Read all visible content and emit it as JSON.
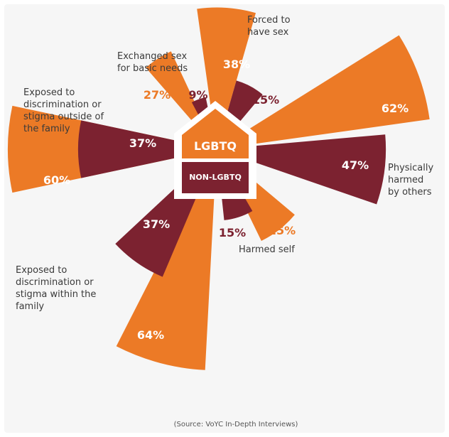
{
  "chart_data": {
    "type": "polar-area",
    "center": {
      "top_label": "LGBTQ",
      "bottom_label": "NON-LGBTQ"
    },
    "series": [
      {
        "name": "LGBTQ",
        "color": "#ec7a26"
      },
      {
        "name": "NON-LGBTQ",
        "color": "#7c2230"
      }
    ],
    "categories": [
      {
        "label_lines": [
          "Forced to",
          "have sex"
        ],
        "lgbtq": 38,
        "non_lgbtq": 15,
        "lgbtq_text": "38%",
        "non_lgbtq_text": "15%"
      },
      {
        "label_lines": [
          "Physically",
          "harmed",
          "by others"
        ],
        "lgbtq": 62,
        "non_lgbtq": 47,
        "lgbtq_text": "62%",
        "non_lgbtq_text": "47%"
      },
      {
        "label_lines": [
          "Harmed self"
        ],
        "lgbtq": 25,
        "non_lgbtq": 15,
        "lgbtq_text": "25%",
        "non_lgbtq_text": "15%"
      },
      {
        "label_lines": [
          "Exposed to",
          "discrimination or",
          "stigma within the",
          "family"
        ],
        "lgbtq": 64,
        "non_lgbtq": 37,
        "lgbtq_text": "64%",
        "non_lgbtq_text": "37%"
      },
      {
        "label_lines": [
          "Exposed to",
          "discrimination or",
          "stigma outside of",
          "the family"
        ],
        "lgbtq": 60,
        "non_lgbtq": 37,
        "lgbtq_text": "60%",
        "non_lgbtq_text": "37%"
      },
      {
        "label_lines": [
          "Exchanged sex",
          "for basic needs"
        ],
        "lgbtq": 27,
        "non_lgbtq": 9,
        "lgbtq_text": "27%",
        "non_lgbtq_text": "9%"
      }
    ],
    "source": "(Source: VoYC In-Depth Interviews)"
  }
}
